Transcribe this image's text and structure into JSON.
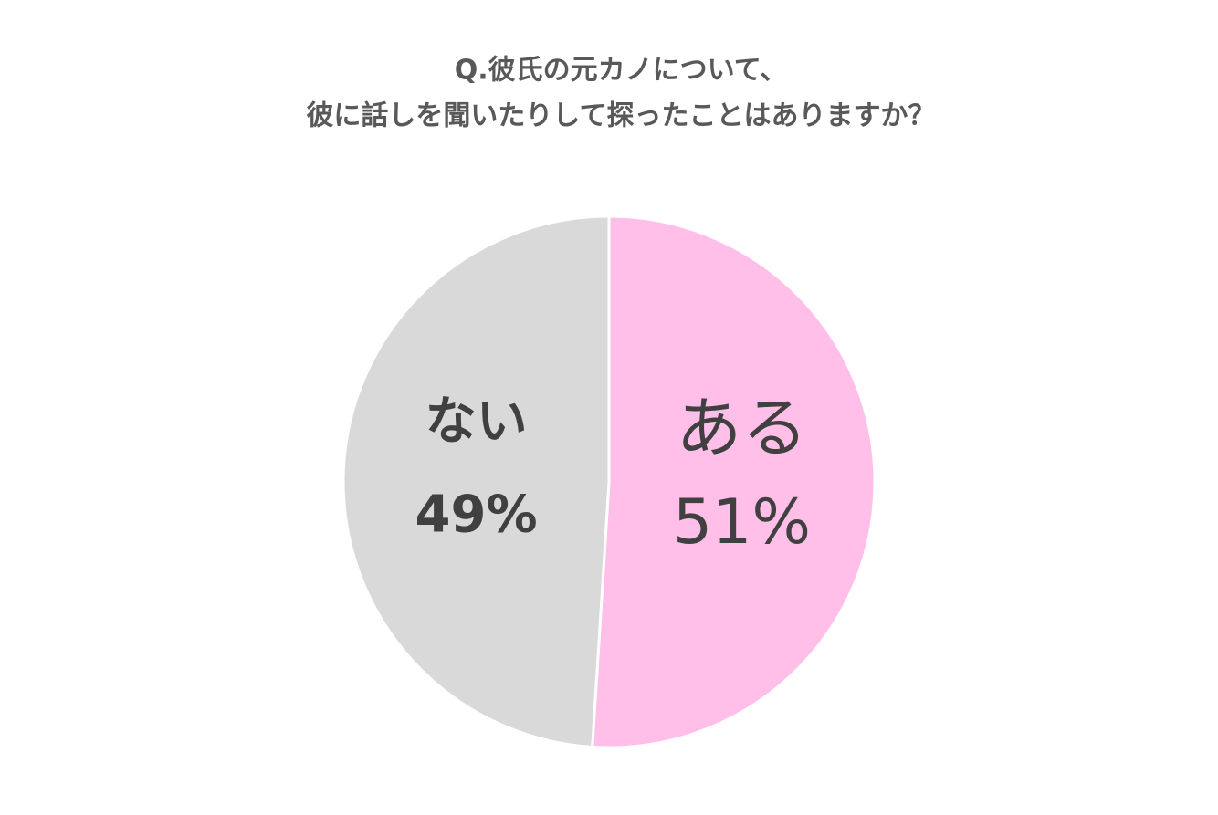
{
  "chart_data": {
    "type": "pie",
    "title": [
      "Q.彼氏の元カノについて、",
      "彼に話しを聞いたりして探ったことはありますか？"
    ],
    "categories": [
      "ある",
      "ない"
    ],
    "values": [
      51,
      49
    ],
    "value_labels": [
      "51%",
      "49%"
    ],
    "colors": [
      "#ffbfe8",
      "#d9d9d9"
    ],
    "start_angle": 0,
    "direction": "clockwise"
  }
}
